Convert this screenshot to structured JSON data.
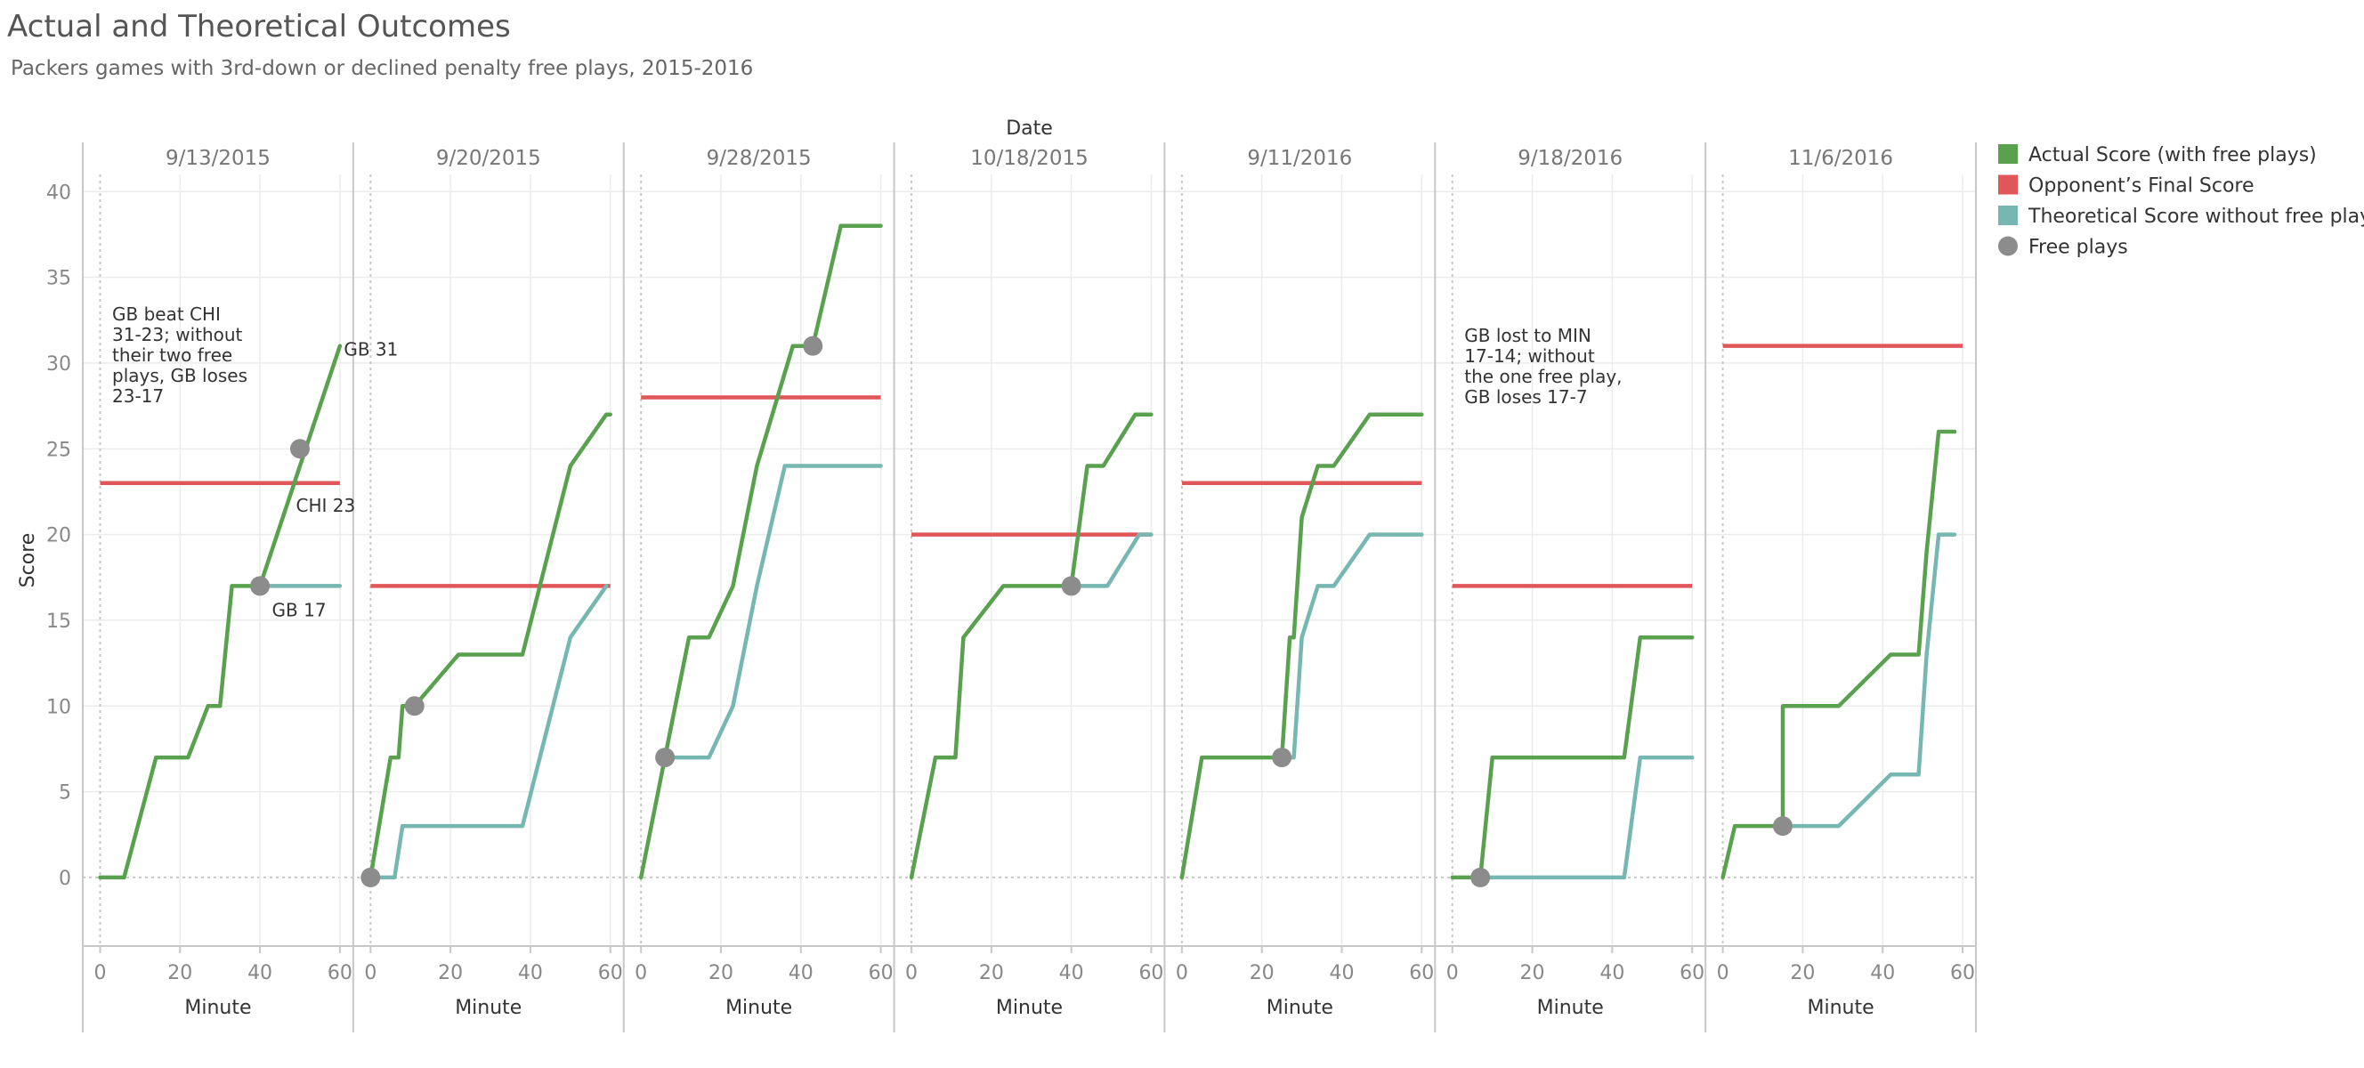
{
  "chart_data": {
    "type": "line",
    "title": "Actual and Theoretical Outcomes",
    "subtitle": "Packers games with 3rd-down or declined penalty free plays, 2015-2016",
    "column_header": "Date",
    "xlabel": "Minute",
    "ylabel": "Score",
    "xlim": [
      -3,
      62
    ],
    "ylim": [
      -4,
      41
    ],
    "x_ticks": [
      0,
      20,
      40,
      60
    ],
    "y_ticks": [
      0,
      5,
      10,
      15,
      20,
      25,
      30,
      35,
      40
    ],
    "grid": true,
    "legend_position": "right",
    "legend": [
      {
        "label": "Actual Score (with free plays)",
        "color": "#59a14f",
        "marker": "square"
      },
      {
        "label": "Opponent’s Final Score",
        "color": "#e15759",
        "marker": "square"
      },
      {
        "label": "Theoretical Score without free plays",
        "color": "#76b7b2",
        "marker": "square"
      },
      {
        "label": "Free plays",
        "color": "#8c8c8c",
        "marker": "circle"
      }
    ],
    "colors": {
      "actual": "#59a14f",
      "opponent": "#e15759",
      "theoretical": "#76b7b2",
      "free_play": "#8c8c8c"
    },
    "panels": [
      {
        "date": "9/13/2015",
        "actual": [
          [
            0,
            0
          ],
          [
            6,
            0
          ],
          [
            14,
            7
          ],
          [
            22,
            7
          ],
          [
            27,
            10
          ],
          [
            30,
            10
          ],
          [
            33,
            17
          ],
          [
            40,
            17
          ],
          [
            60,
            31
          ]
        ],
        "theoretical": [
          [
            40,
            17
          ],
          [
            60,
            17
          ]
        ],
        "opponent": 23,
        "free_plays": [
          [
            40,
            17
          ],
          [
            50,
            25
          ]
        ],
        "annotation": [
          "GB beat CHI",
          "31-23; without",
          "their two free",
          "plays, GB loses",
          "23-17"
        ],
        "labels": [
          {
            "text": "GB 31",
            "x": 61,
            "y": 30.8
          },
          {
            "text": "CHI 23",
            "x": 49,
            "y": 21.7
          },
          {
            "text": "GB 17",
            "x": 43,
            "y": 15.6
          }
        ]
      },
      {
        "date": "9/20/2015",
        "actual": [
          [
            0,
            0
          ],
          [
            5,
            7
          ],
          [
            7,
            7
          ],
          [
            8,
            10
          ],
          [
            11,
            10
          ],
          [
            22,
            13
          ],
          [
            27,
            13
          ],
          [
            38,
            13
          ],
          [
            50,
            24
          ],
          [
            59,
            27
          ],
          [
            60,
            27
          ]
        ],
        "theoretical": [
          [
            0,
            0
          ],
          [
            6,
            0
          ],
          [
            8,
            3
          ],
          [
            38,
            3
          ],
          [
            50,
            14
          ],
          [
            59,
            17
          ]
        ],
        "opponent": 17,
        "free_plays": [
          [
            0,
            0
          ],
          [
            11,
            10
          ]
        ],
        "annotation": [],
        "labels": []
      },
      {
        "date": "9/28/2015",
        "actual": [
          [
            0,
            0
          ],
          [
            6,
            7
          ],
          [
            12,
            14
          ],
          [
            17,
            14
          ],
          [
            23,
            17
          ],
          [
            29,
            24
          ],
          [
            38,
            31
          ],
          [
            43,
            31
          ],
          [
            50,
            38
          ],
          [
            60,
            38
          ]
        ],
        "theoretical": [
          [
            6,
            7
          ],
          [
            17,
            7
          ],
          [
            23,
            10
          ],
          [
            29,
            17
          ],
          [
            36,
            24
          ],
          [
            60,
            24
          ]
        ],
        "opponent": 28,
        "free_plays": [
          [
            6,
            7
          ],
          [
            43,
            31
          ]
        ],
        "annotation": [],
        "labels": []
      },
      {
        "date": "10/18/2015",
        "actual": [
          [
            0,
            0
          ],
          [
            6,
            7
          ],
          [
            11,
            7
          ],
          [
            13,
            14
          ],
          [
            23,
            17
          ],
          [
            40,
            17
          ],
          [
            44,
            24
          ],
          [
            48,
            24
          ],
          [
            56,
            27
          ],
          [
            60,
            27
          ]
        ],
        "theoretical": [
          [
            40,
            17
          ],
          [
            49,
            17
          ],
          [
            57,
            20
          ],
          [
            60,
            20
          ]
        ],
        "opponent": 20,
        "free_plays": [
          [
            40,
            17
          ]
        ],
        "annotation": [],
        "labels": []
      },
      {
        "date": "9/11/2016",
        "actual": [
          [
            0,
            0
          ],
          [
            5,
            7
          ],
          [
            25,
            7
          ],
          [
            27,
            14
          ],
          [
            28,
            14
          ],
          [
            30,
            21
          ],
          [
            34,
            24
          ],
          [
            38,
            24
          ],
          [
            47,
            27
          ],
          [
            60,
            27
          ]
        ],
        "theoretical": [
          [
            25,
            7
          ],
          [
            28,
            7
          ],
          [
            30,
            14
          ],
          [
            34,
            17
          ],
          [
            38,
            17
          ],
          [
            47,
            20
          ],
          [
            60,
            20
          ]
        ],
        "opponent": 23,
        "free_plays": [
          [
            25,
            7
          ]
        ],
        "annotation": [],
        "labels": []
      },
      {
        "date": "9/18/2016",
        "actual": [
          [
            0,
            0
          ],
          [
            7,
            0
          ],
          [
            10,
            7
          ],
          [
            43,
            7
          ],
          [
            47,
            14
          ],
          [
            60,
            14
          ]
        ],
        "theoretical": [
          [
            7,
            0
          ],
          [
            43,
            0
          ],
          [
            47,
            7
          ],
          [
            60,
            7
          ]
        ],
        "opponent": 17,
        "free_plays": [
          [
            7,
            0
          ]
        ],
        "annotation": [
          "GB lost to MIN",
          "17-14; without",
          "the one free play,",
          "GB loses 17-7"
        ],
        "labels": []
      },
      {
        "date": "11/6/2016",
        "actual": [
          [
            0,
            0
          ],
          [
            3,
            3
          ],
          [
            15,
            3
          ],
          [
            15,
            10
          ],
          [
            29,
            10
          ],
          [
            42,
            13
          ],
          [
            49,
            13
          ],
          [
            51,
            19
          ],
          [
            54,
            26
          ],
          [
            58,
            26
          ]
        ],
        "theoretical": [
          [
            15,
            3
          ],
          [
            29,
            3
          ],
          [
            42,
            6
          ],
          [
            49,
            6
          ],
          [
            51,
            13
          ],
          [
            54,
            20
          ],
          [
            58,
            20
          ]
        ],
        "opponent": 31,
        "free_plays": [
          [
            15,
            3
          ]
        ],
        "annotation": [],
        "labels": []
      }
    ]
  }
}
